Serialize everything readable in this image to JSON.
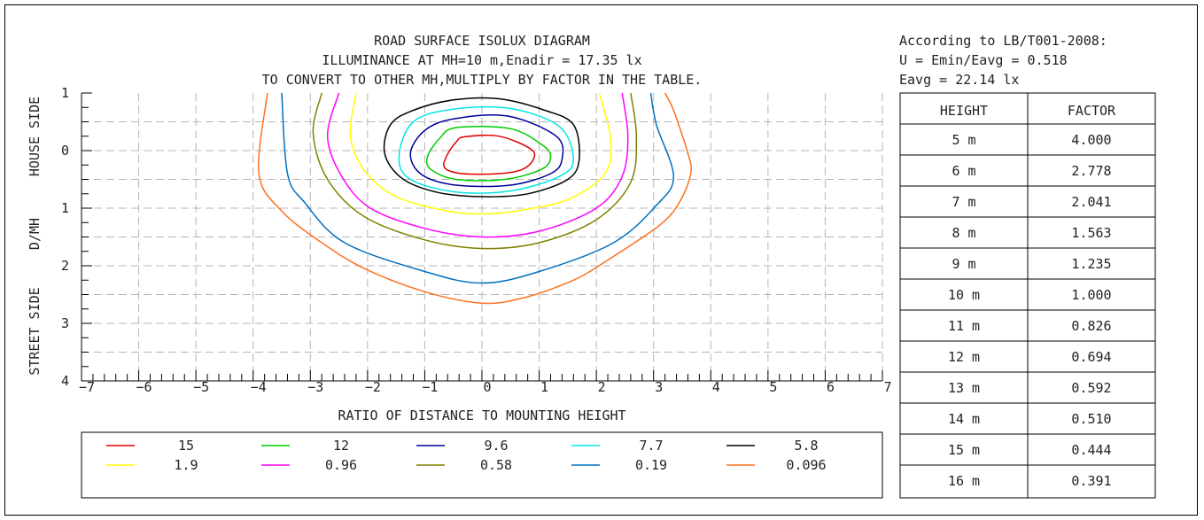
{
  "title": {
    "line1": "ROAD SURFACE ISOLUX DIAGRAM",
    "line2": "ILLUMINANCE AT MH=10 m,Enadir  = 17.35 lx",
    "line3": "TO CONVERT TO OTHER MH,MULTIPLY BY FACTOR IN THE TABLE."
  },
  "info": {
    "standard": "According to LB/T001-2008:",
    "uniformity": "U = Emin/Eavg = 0.518",
    "eavg": "Eavg = 22.14 lx"
  },
  "table": {
    "header_height": "HEIGHT",
    "header_factor": "FACTOR",
    "rows": [
      {
        "height": "5 m",
        "factor": "4.000"
      },
      {
        "height": "6 m",
        "factor": "2.778"
      },
      {
        "height": "7 m",
        "factor": "2.041"
      },
      {
        "height": "8 m",
        "factor": "1.563"
      },
      {
        "height": "9 m",
        "factor": "1.235"
      },
      {
        "height": "10 m",
        "factor": "1.000"
      },
      {
        "height": "11 m",
        "factor": "0.826"
      },
      {
        "height": "12 m",
        "factor": "0.694"
      },
      {
        "height": "13 m",
        "factor": "0.592"
      },
      {
        "height": "14 m",
        "factor": "0.510"
      },
      {
        "height": "15 m",
        "factor": "0.444"
      },
      {
        "height": "16 m",
        "factor": "0.391"
      }
    ]
  },
  "chart_data": {
    "type": "contour",
    "title": "ROAD SURFACE ISOLUX DIAGRAM",
    "xlabel": "RATIO OF DISTANCE TO MOUNTING HEIGHT",
    "ylabel_left": "STREET SIDE D/MH HOUSE SIDE",
    "ylabel_parts": [
      "STREET SIDE",
      "D/MH",
      "HOUSE SIDE"
    ],
    "xlim": [
      -7,
      7
    ],
    "ylim": [
      -1,
      4
    ],
    "x_ticks": [
      -7,
      -6,
      -5,
      -4,
      -3,
      -2,
      -1,
      0,
      1,
      2,
      3,
      4,
      5,
      6,
      7
    ],
    "y_ticks": [
      -1,
      0,
      1,
      2,
      3,
      4
    ],
    "y_tick_labels": [
      "1",
      "0",
      "1",
      "2",
      "3",
      "4"
    ],
    "grid": true,
    "legend_placement": "bottom",
    "series": [
      {
        "name": "15",
        "color": "#e00000",
        "points": [
          [
            -0.3,
            -0.24
          ],
          [
            0.3,
            -0.25
          ],
          [
            0.85,
            -0.03
          ],
          [
            0.9,
            0.15
          ],
          [
            0.7,
            0.33
          ],
          [
            0.3,
            0.4
          ],
          [
            -0.35,
            0.4
          ],
          [
            -0.65,
            0.3
          ],
          [
            -0.62,
            0.1
          ],
          [
            -0.45,
            -0.15
          ]
        ]
      },
      {
        "name": "12",
        "color": "#00cc00",
        "points": [
          [
            -0.45,
            -0.4
          ],
          [
            0.5,
            -0.38
          ],
          [
            1.05,
            -0.1
          ],
          [
            1.2,
            0.1
          ],
          [
            1.05,
            0.32
          ],
          [
            0.4,
            0.5
          ],
          [
            -0.45,
            0.5
          ],
          [
            -0.9,
            0.32
          ],
          [
            -0.95,
            0.1
          ],
          [
            -0.75,
            -0.2
          ]
        ]
      },
      {
        "name": "9.6",
        "color": "#000099",
        "points": [
          [
            -0.5,
            -0.55
          ],
          [
            0.45,
            -0.6
          ],
          [
            1.3,
            -0.25
          ],
          [
            1.4,
            0.15
          ],
          [
            1.2,
            0.4
          ],
          [
            0.5,
            0.6
          ],
          [
            -0.45,
            0.6
          ],
          [
            -1.05,
            0.42
          ],
          [
            -1.25,
            0.05
          ],
          [
            -1.0,
            -0.35
          ]
        ]
      },
      {
        "name": "7.7",
        "color": "#00e5e5",
        "points": [
          [
            -0.5,
            -0.72
          ],
          [
            0.5,
            -0.73
          ],
          [
            1.35,
            -0.42
          ],
          [
            1.6,
            0.15
          ],
          [
            1.35,
            0.45
          ],
          [
            0.5,
            0.7
          ],
          [
            -0.45,
            0.72
          ],
          [
            -1.25,
            0.5
          ],
          [
            -1.45,
            0.1
          ],
          [
            -1.2,
            -0.5
          ]
        ]
      },
      {
        "name": "5.8",
        "color": "#000000",
        "points": [
          [
            -0.5,
            -0.88
          ],
          [
            0.3,
            -0.9
          ],
          [
            1.1,
            -0.7
          ],
          [
            1.6,
            -0.45
          ],
          [
            1.7,
            0.15
          ],
          [
            1.5,
            0.5
          ],
          [
            0.8,
            0.75
          ],
          [
            0,
            0.8
          ],
          [
            -0.8,
            0.72
          ],
          [
            -1.4,
            0.48
          ],
          [
            -1.7,
            0.05
          ],
          [
            -1.6,
            -0.45
          ],
          [
            -1.2,
            -0.7
          ]
        ]
      },
      {
        "name": "1.9",
        "color": "#ffff00",
        "points": [
          [
            -2.2,
            -1.0
          ],
          [
            -2.3,
            -0.25
          ],
          [
            -2.05,
            0.35
          ],
          [
            -1.5,
            0.8
          ],
          [
            -0.6,
            1.05
          ],
          [
            0,
            1.1
          ],
          [
            0.6,
            1.05
          ],
          [
            1.5,
            0.85
          ],
          [
            2.15,
            0.4
          ],
          [
            2.25,
            -0.2
          ],
          [
            2.05,
            -1.0
          ]
        ]
      },
      {
        "name": "0.96",
        "color": "#ff00ff",
        "points": [
          [
            -2.5,
            -1.0
          ],
          [
            -2.7,
            -0.25
          ],
          [
            -2.45,
            0.45
          ],
          [
            -1.95,
            1.0
          ],
          [
            -1.0,
            1.35
          ],
          [
            0,
            1.5
          ],
          [
            1.0,
            1.4
          ],
          [
            2.0,
            1.0
          ],
          [
            2.45,
            0.45
          ],
          [
            2.55,
            -0.25
          ],
          [
            2.45,
            -1.0
          ]
        ]
      },
      {
        "name": "0.58",
        "color": "#808000",
        "points": [
          [
            -2.8,
            -1.0
          ],
          [
            -2.95,
            -0.3
          ],
          [
            -2.7,
            0.5
          ],
          [
            -2.05,
            1.15
          ],
          [
            -1.0,
            1.55
          ],
          [
            0,
            1.7
          ],
          [
            1.0,
            1.6
          ],
          [
            2.0,
            1.2
          ],
          [
            2.6,
            0.55
          ],
          [
            2.7,
            -0.25
          ],
          [
            2.6,
            -1.0
          ]
        ]
      },
      {
        "name": "0.19",
        "color": "#0070c0",
        "points": [
          [
            -3.5,
            -1.0
          ],
          [
            -3.4,
            0.4
          ],
          [
            -3.1,
            0.9
          ],
          [
            -2.4,
            1.6
          ],
          [
            -1.0,
            2.1
          ],
          [
            0,
            2.3
          ],
          [
            1.0,
            2.1
          ],
          [
            2.3,
            1.6
          ],
          [
            3.05,
            0.95
          ],
          [
            3.35,
            0.45
          ],
          [
            3.05,
            -0.45
          ],
          [
            2.95,
            -1.0
          ]
        ]
      },
      {
        "name": "0.096",
        "color": "#ff7020",
        "points": [
          [
            -3.75,
            -1.0
          ],
          [
            -3.9,
            0.4
          ],
          [
            -3.5,
            1.05
          ],
          [
            -2.8,
            1.6
          ],
          [
            -2.05,
            2.05
          ],
          [
            -1.0,
            2.45
          ],
          [
            0,
            2.65
          ],
          [
            0.75,
            2.55
          ],
          [
            1.6,
            2.25
          ],
          [
            2.2,
            1.9
          ],
          [
            3.1,
            1.3
          ],
          [
            3.45,
            0.9
          ],
          [
            3.65,
            0.4
          ],
          [
            3.6,
            0.05
          ],
          [
            3.35,
            -0.7
          ],
          [
            3.2,
            -1.0
          ]
        ]
      }
    ]
  }
}
